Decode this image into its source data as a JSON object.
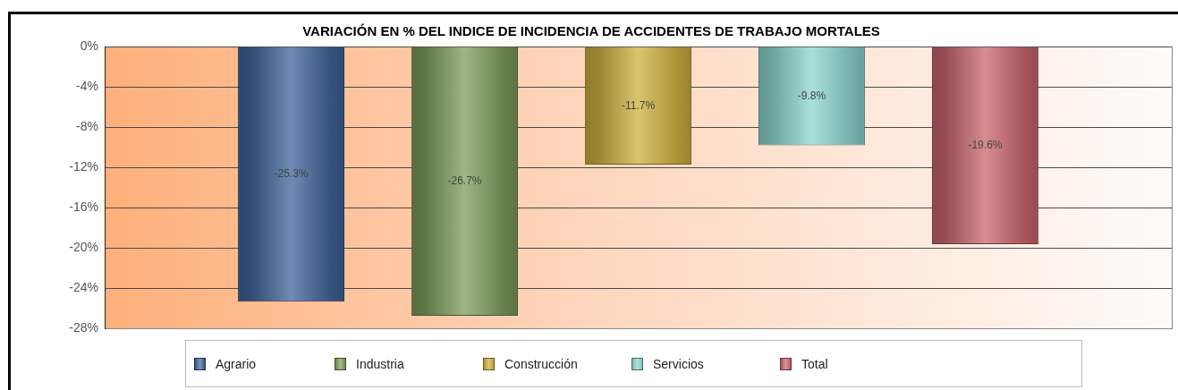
{
  "chart_data": {
    "type": "bar",
    "title": "VARIACIÓN EN % DEL INDICE DE INCIDENCIA DE ACCIDENTES DE TRABAJO MORTALES",
    "categories": [
      null
    ],
    "series": [
      {
        "name": "Agrario",
        "color": "#3f6399",
        "values": [
          -25.3
        ],
        "value_labels": [
          "-25.3%"
        ]
      },
      {
        "name": "Industria",
        "color": "#7d9c5a",
        "values": [
          -26.7
        ],
        "value_labels": [
          "-26.7%"
        ]
      },
      {
        "name": "Construcción",
        "color": "#cdb03e",
        "values": [
          -11.7
        ],
        "value_labels": [
          "-11.7%"
        ]
      },
      {
        "name": "Servicios",
        "color": "#8dd6d0",
        "values": [
          -9.8
        ],
        "value_labels": [
          "-9.8%"
        ]
      },
      {
        "name": "Total",
        "color": "#c9656e",
        "values": [
          -19.6
        ],
        "value_labels": [
          "-19.6%"
        ]
      }
    ],
    "ylim": [
      -28,
      0
    ],
    "yticks": [
      {
        "value": 0,
        "label": "0%"
      },
      {
        "value": -4,
        "label": "-4%"
      },
      {
        "value": -8,
        "label": "-8%"
      },
      {
        "value": -12,
        "label": "-12%"
      },
      {
        "value": -16,
        "label": "-16%"
      },
      {
        "value": -20,
        "label": "-20%"
      },
      {
        "value": -24,
        "label": "-24%"
      },
      {
        "value": -28,
        "label": "-28%"
      }
    ],
    "grid": "y",
    "legend": "bottom"
  }
}
